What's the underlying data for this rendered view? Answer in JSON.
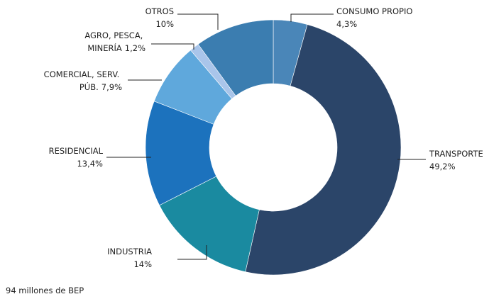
{
  "chart_data": {
    "type": "donut",
    "categories": [
      "CONSUMO PROPIO",
      "TRANSPORTE",
      "INDUSTRIA",
      "RESIDENCIAL",
      "COMERCIAL, SERV. PÚB.",
      "AGRO, PESCA, MINERÍA",
      "OTROS"
    ],
    "values": [
      4.3,
      49.2,
      14,
      13.4,
      7.9,
      1.2,
      10
    ],
    "value_labels": [
      "4,3%",
      "49,2%",
      "14%",
      "13,4%",
      "7,9%",
      "1,2%",
      "10%"
    ],
    "colors": [
      "#4a86b8",
      "#2b4569",
      "#1a8aa0",
      "#1c72bd",
      "#5fa8dc",
      "#a9c5ea",
      "#3b7db0"
    ],
    "note": "94 millones de BEP"
  }
}
